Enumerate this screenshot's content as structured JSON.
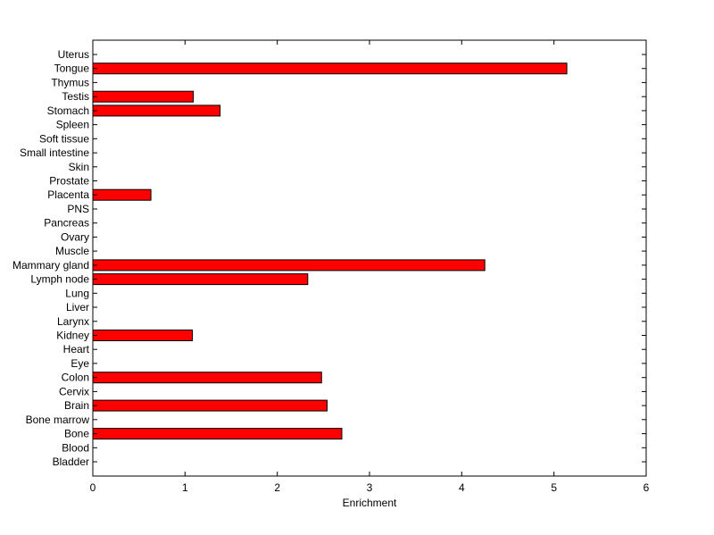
{
  "chart_data": {
    "type": "bar",
    "orientation": "horizontal",
    "title": "",
    "xlabel": "Enrichment",
    "ylabel": "",
    "xlim": [
      0,
      6
    ],
    "xticks": [
      "0",
      "1",
      "2",
      "3",
      "4",
      "5",
      "6"
    ],
    "grid": false,
    "bar_color": "#ff0000",
    "bar_edge_color": "#000000",
    "categories": [
      "Bladder",
      "Blood",
      "Bone",
      "Bone marrow",
      "Brain",
      "Cervix",
      "Colon",
      "Eye",
      "Heart",
      "Kidney",
      "Larynx",
      "Liver",
      "Lung",
      "Lymph node",
      "Mammary gland",
      "Muscle",
      "Ovary",
      "Pancreas",
      "PNS",
      "Placenta",
      "Prostate",
      "Skin",
      "Small intestine",
      "Soft tissue",
      "Spleen",
      "Stomach",
      "Testis",
      "Thymus",
      "Tongue",
      "Uterus"
    ],
    "values": [
      0,
      0,
      2.7,
      0,
      2.54,
      0,
      2.48,
      0,
      0,
      1.08,
      0,
      0,
      0,
      2.33,
      4.25,
      0,
      0,
      0,
      0,
      0.63,
      0,
      0,
      0,
      0,
      0,
      1.38,
      1.09,
      0,
      5.14,
      0
    ]
  }
}
